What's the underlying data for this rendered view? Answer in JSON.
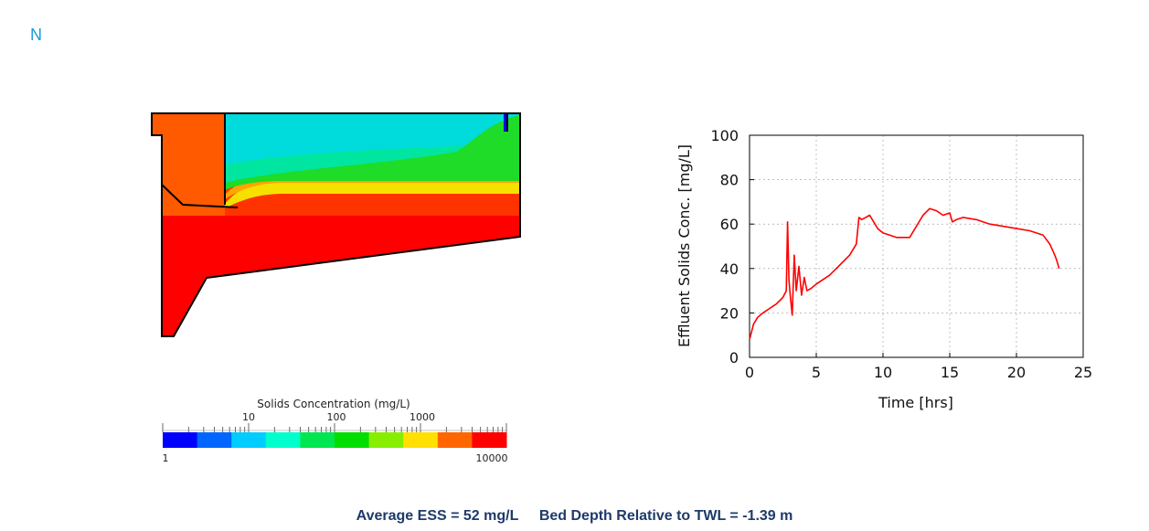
{
  "header": {
    "corner_label": "N"
  },
  "clarifier": {
    "colors": {
      "red": "#ff0000",
      "orange_red": "#ff3300",
      "orange": "#ff5a00",
      "amber": "#ffa500",
      "yellow": "#f5e000",
      "green": "#1edc28",
      "teal": "#00e6a0",
      "cyan": "#00dcdc",
      "blue": "#0000ff"
    }
  },
  "legend": {
    "title": "Solids Concentration (mg/L)",
    "scale": "log",
    "range": [
      1,
      10000
    ],
    "tick_labels_top": [
      "10",
      "100",
      "1000"
    ],
    "tick_labels_bottom": [
      "1",
      "10000"
    ],
    "colors": [
      "#0000ff",
      "#0066ff",
      "#00ccff",
      "#00ffcc",
      "#00e650",
      "#00dd00",
      "#88ee00",
      "#ffe000",
      "#ff6600",
      "#ff0000"
    ]
  },
  "chart_data": {
    "type": "line",
    "title": "",
    "xlabel": "Time [hrs]",
    "ylabel": "Effluent Solids Conc. [mg/L]",
    "xlim": [
      0,
      25
    ],
    "ylim": [
      0,
      100
    ],
    "x_ticks": [
      "0",
      "5",
      "10",
      "15",
      "20",
      "25"
    ],
    "y_ticks": [
      "0",
      "20",
      "40",
      "60",
      "80",
      "100"
    ],
    "grid": true,
    "line_color": "#ff0000",
    "series": [
      {
        "name": "",
        "x": [
          0,
          0.3,
          0.6,
          1.0,
          1.5,
          2.0,
          2.5,
          2.75,
          2.85,
          2.95,
          3.05,
          3.2,
          3.35,
          3.5,
          3.7,
          3.9,
          4.1,
          4.3,
          4.6,
          5.0,
          5.5,
          6.0,
          6.5,
          7.0,
          7.5,
          8.0,
          8.2,
          8.4,
          8.7,
          9.0,
          9.3,
          9.6,
          10.0,
          10.5,
          11.0,
          12.0,
          13.0,
          13.5,
          14.0,
          14.5,
          15.0,
          15.2,
          15.5,
          16.0,
          17.0,
          18.0,
          19.0,
          20.0,
          21.0,
          22.0,
          22.5,
          22.8,
          23.0,
          23.2
        ],
        "values": [
          8,
          15,
          18,
          20,
          22,
          24,
          27,
          30,
          61,
          35,
          28,
          19,
          46,
          30,
          41,
          28,
          36,
          30,
          31,
          33,
          35,
          37,
          40,
          43,
          46,
          51,
          63,
          62,
          63,
          64,
          61,
          58,
          56,
          55,
          54,
          54,
          64,
          67,
          66,
          64,
          65,
          61,
          62,
          63,
          62,
          60,
          59,
          58,
          57,
          55,
          51,
          47,
          44,
          40
        ]
      }
    ]
  },
  "summary": {
    "ess_text": "Average ESS = 52 mg/L",
    "bed_depth_text": "Bed Depth Relative to TWL = -1.39 m"
  }
}
